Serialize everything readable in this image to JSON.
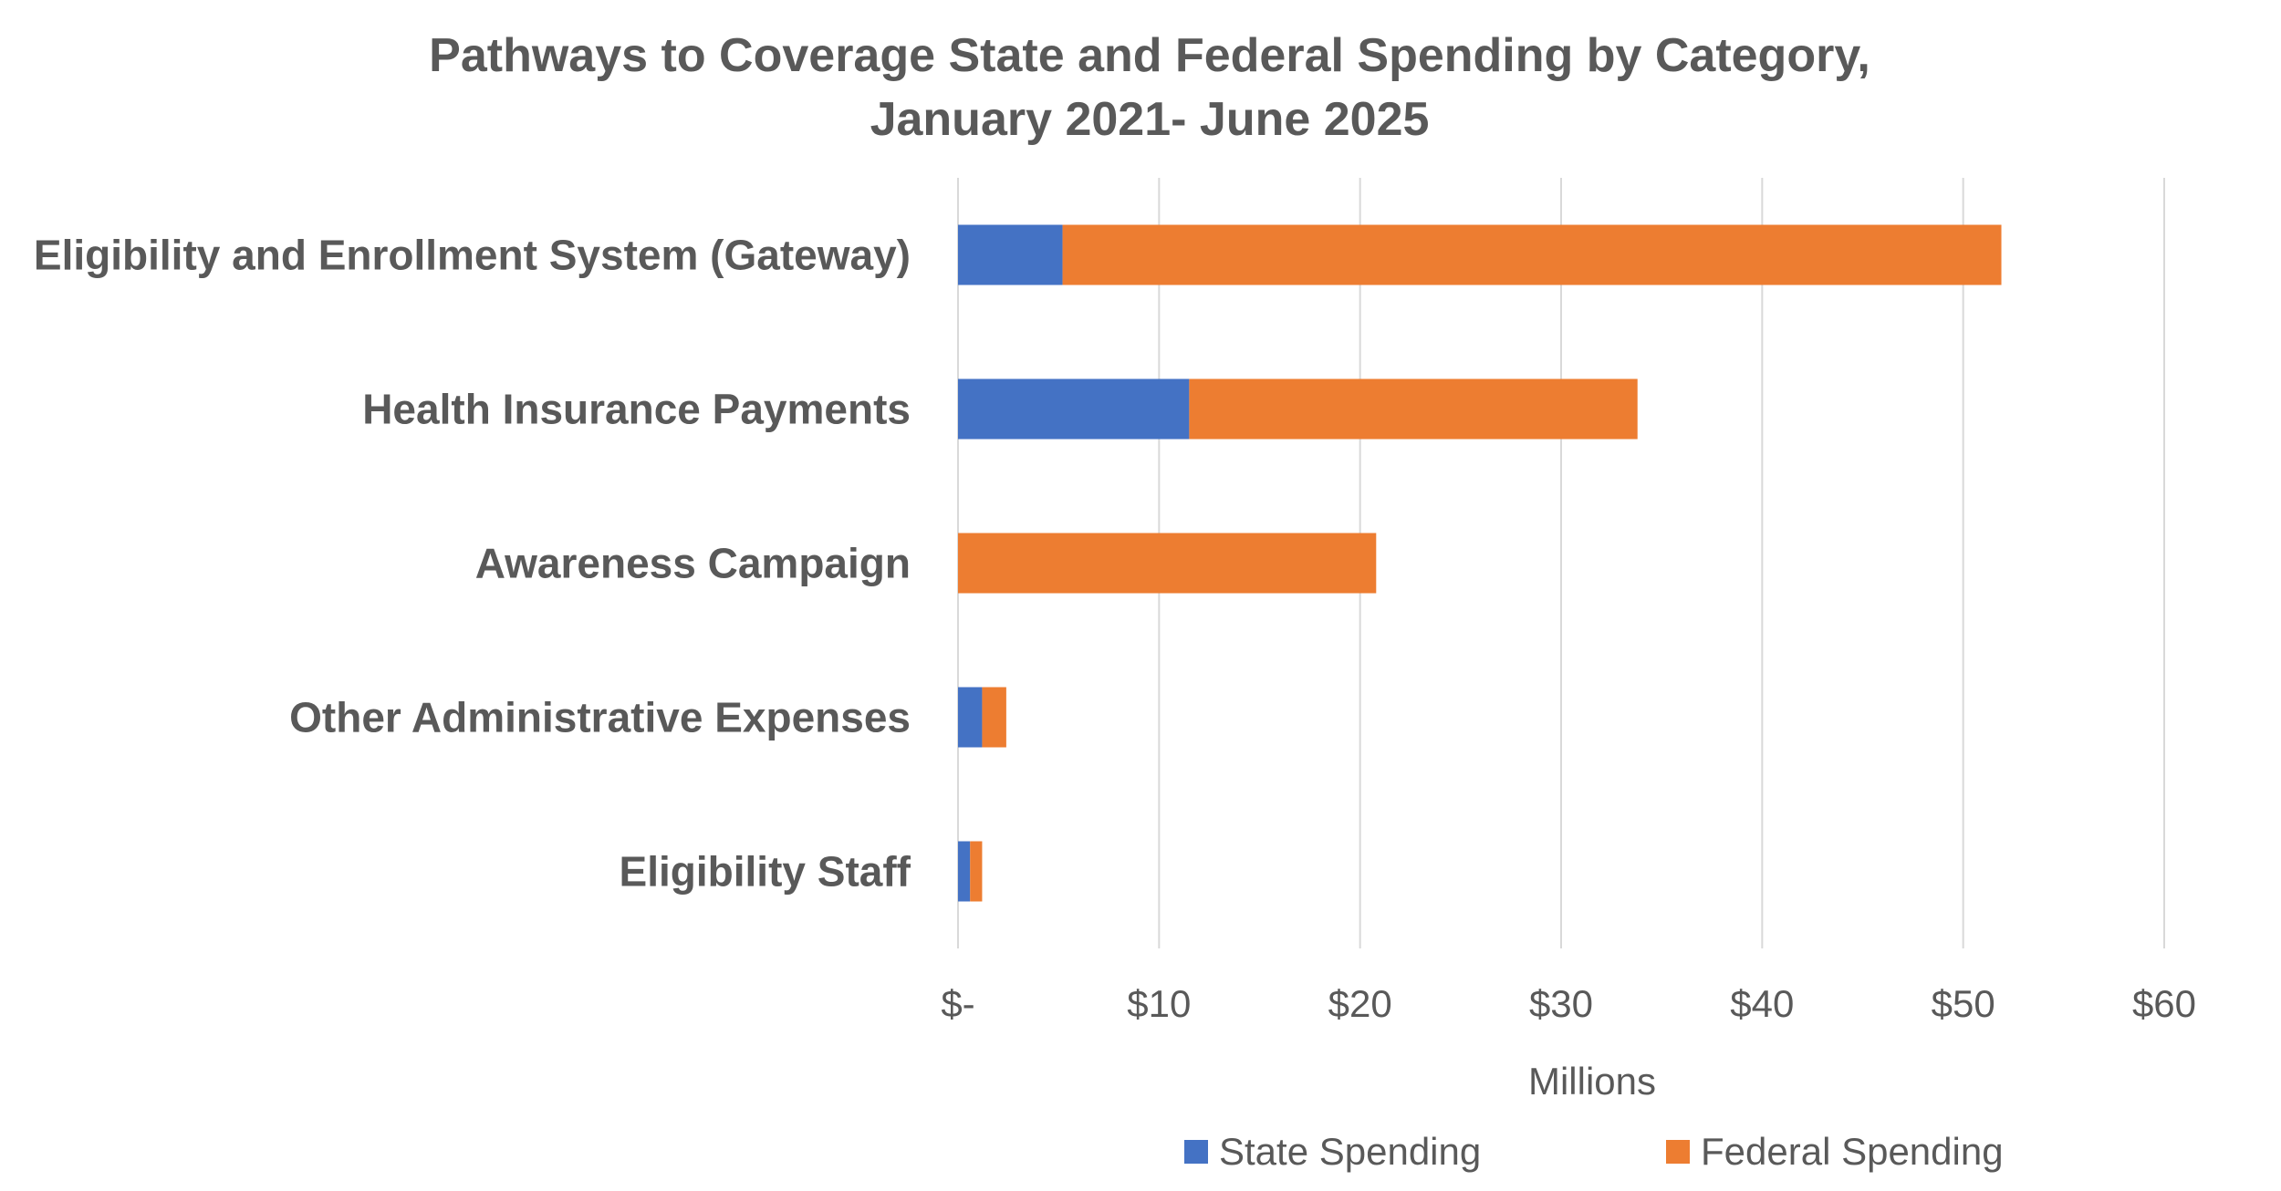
{
  "chart_data": {
    "type": "bar",
    "orientation": "horizontal",
    "stacked": true,
    "title": "Pathways to Coverage State and Federal Spending by Category,",
    "subtitle": "January 2021- June 2025",
    "categories": [
      "Eligibility and Enrollment System (Gateway)",
      "Health Insurance Payments",
      "Awareness Campaign",
      "Other Administrative Expenses",
      "Eligibility Staff"
    ],
    "series": [
      {
        "name": "State Spending",
        "color": "#4472c4",
        "values": [
          5.2,
          11.5,
          0,
          1.2,
          0.6
        ]
      },
      {
        "name": "Federal Spending",
        "color": "#ed7d31",
        "values": [
          46.7,
          22.3,
          20.8,
          1.2,
          0.6
        ]
      }
    ],
    "xlabel": "Millions",
    "ylabel": "",
    "xlim": [
      0,
      60
    ],
    "x_ticks": [
      0,
      10,
      20,
      30,
      40,
      50,
      60
    ],
    "x_tick_labels": [
      "$-",
      "$10",
      "$20",
      "$30",
      "$40",
      "$50",
      "$60"
    ],
    "grid": true,
    "legend_position": "bottom"
  }
}
